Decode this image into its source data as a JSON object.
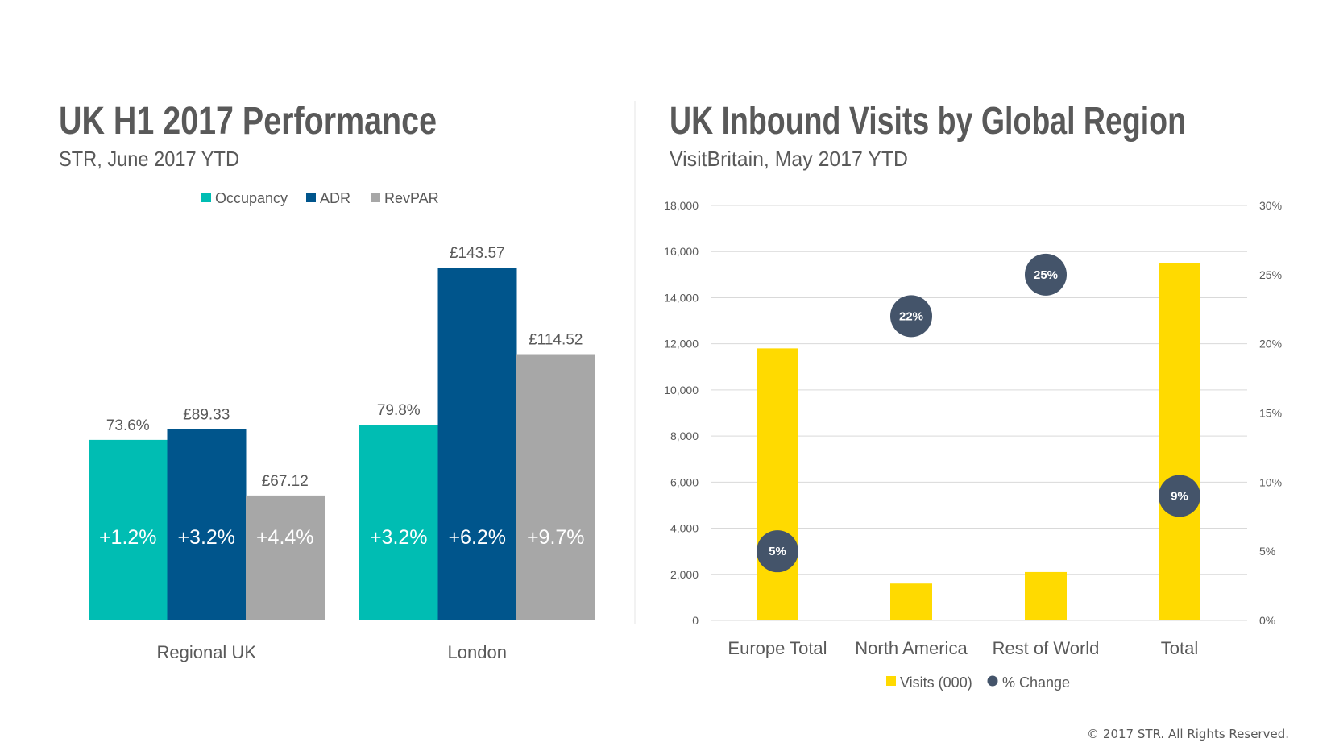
{
  "chart_data": [
    {
      "type": "bar",
      "title": "UK H1 2017 Performance",
      "subtitle": "STR, June 2017 YTD",
      "categories": [
        "Regional UK",
        "London"
      ],
      "legend_position": "top",
      "grid": false,
      "series": [
        {
          "name": "Occupancy",
          "color": "#00BDB3",
          "values": [
            73.6,
            79.8
          ],
          "labels": [
            "73.6%",
            "79.8%"
          ],
          "changes": [
            "+1.2%",
            "+3.2%"
          ]
        },
        {
          "name": "ADR",
          "color": "#00558C",
          "values": [
            89.33,
            143.57
          ],
          "labels": [
            "£89.33",
            "£143.57"
          ],
          "changes": [
            "+3.2%",
            "+6.2%"
          ]
        },
        {
          "name": "RevPAR",
          "color": "#A7A7A7",
          "values": [
            67.12,
            114.52
          ],
          "labels": [
            "£67.12",
            "£114.52"
          ],
          "changes": [
            "+4.4%",
            "+9.7%"
          ]
        }
      ]
    },
    {
      "type": "bar",
      "title": "UK Inbound Visits by Global Region",
      "subtitle": "VisitBritain, May 2017 YTD",
      "categories": [
        "Europe Total",
        "North America",
        "Rest of World",
        "Total"
      ],
      "legend_position": "bottom",
      "grid": true,
      "y_ticks": [
        "0",
        "2,000",
        "4,000",
        "6,000",
        "8,000",
        "10,000",
        "12,000",
        "14,000",
        "16,000",
        "18,000"
      ],
      "ylim": [
        0,
        18000
      ],
      "y2_ticks": [
        "0%",
        "5%",
        "10%",
        "15%",
        "20%",
        "25%",
        "30%"
      ],
      "y2lim": [
        0,
        30
      ],
      "series": [
        {
          "name": "Visits (000)",
          "type": "bar",
          "color": "#FFDA00",
          "axis": "left",
          "values": [
            11800,
            1600,
            2100,
            15500
          ]
        },
        {
          "name": "% Change",
          "type": "scatter",
          "color": "#44546A",
          "axis": "right",
          "values": [
            5,
            22,
            25,
            9
          ],
          "labels": [
            "5%",
            "22%",
            "25%",
            "9%"
          ]
        }
      ]
    }
  ],
  "footer": {
    "copyright": "© 2017 STR. All Rights Reserved."
  }
}
